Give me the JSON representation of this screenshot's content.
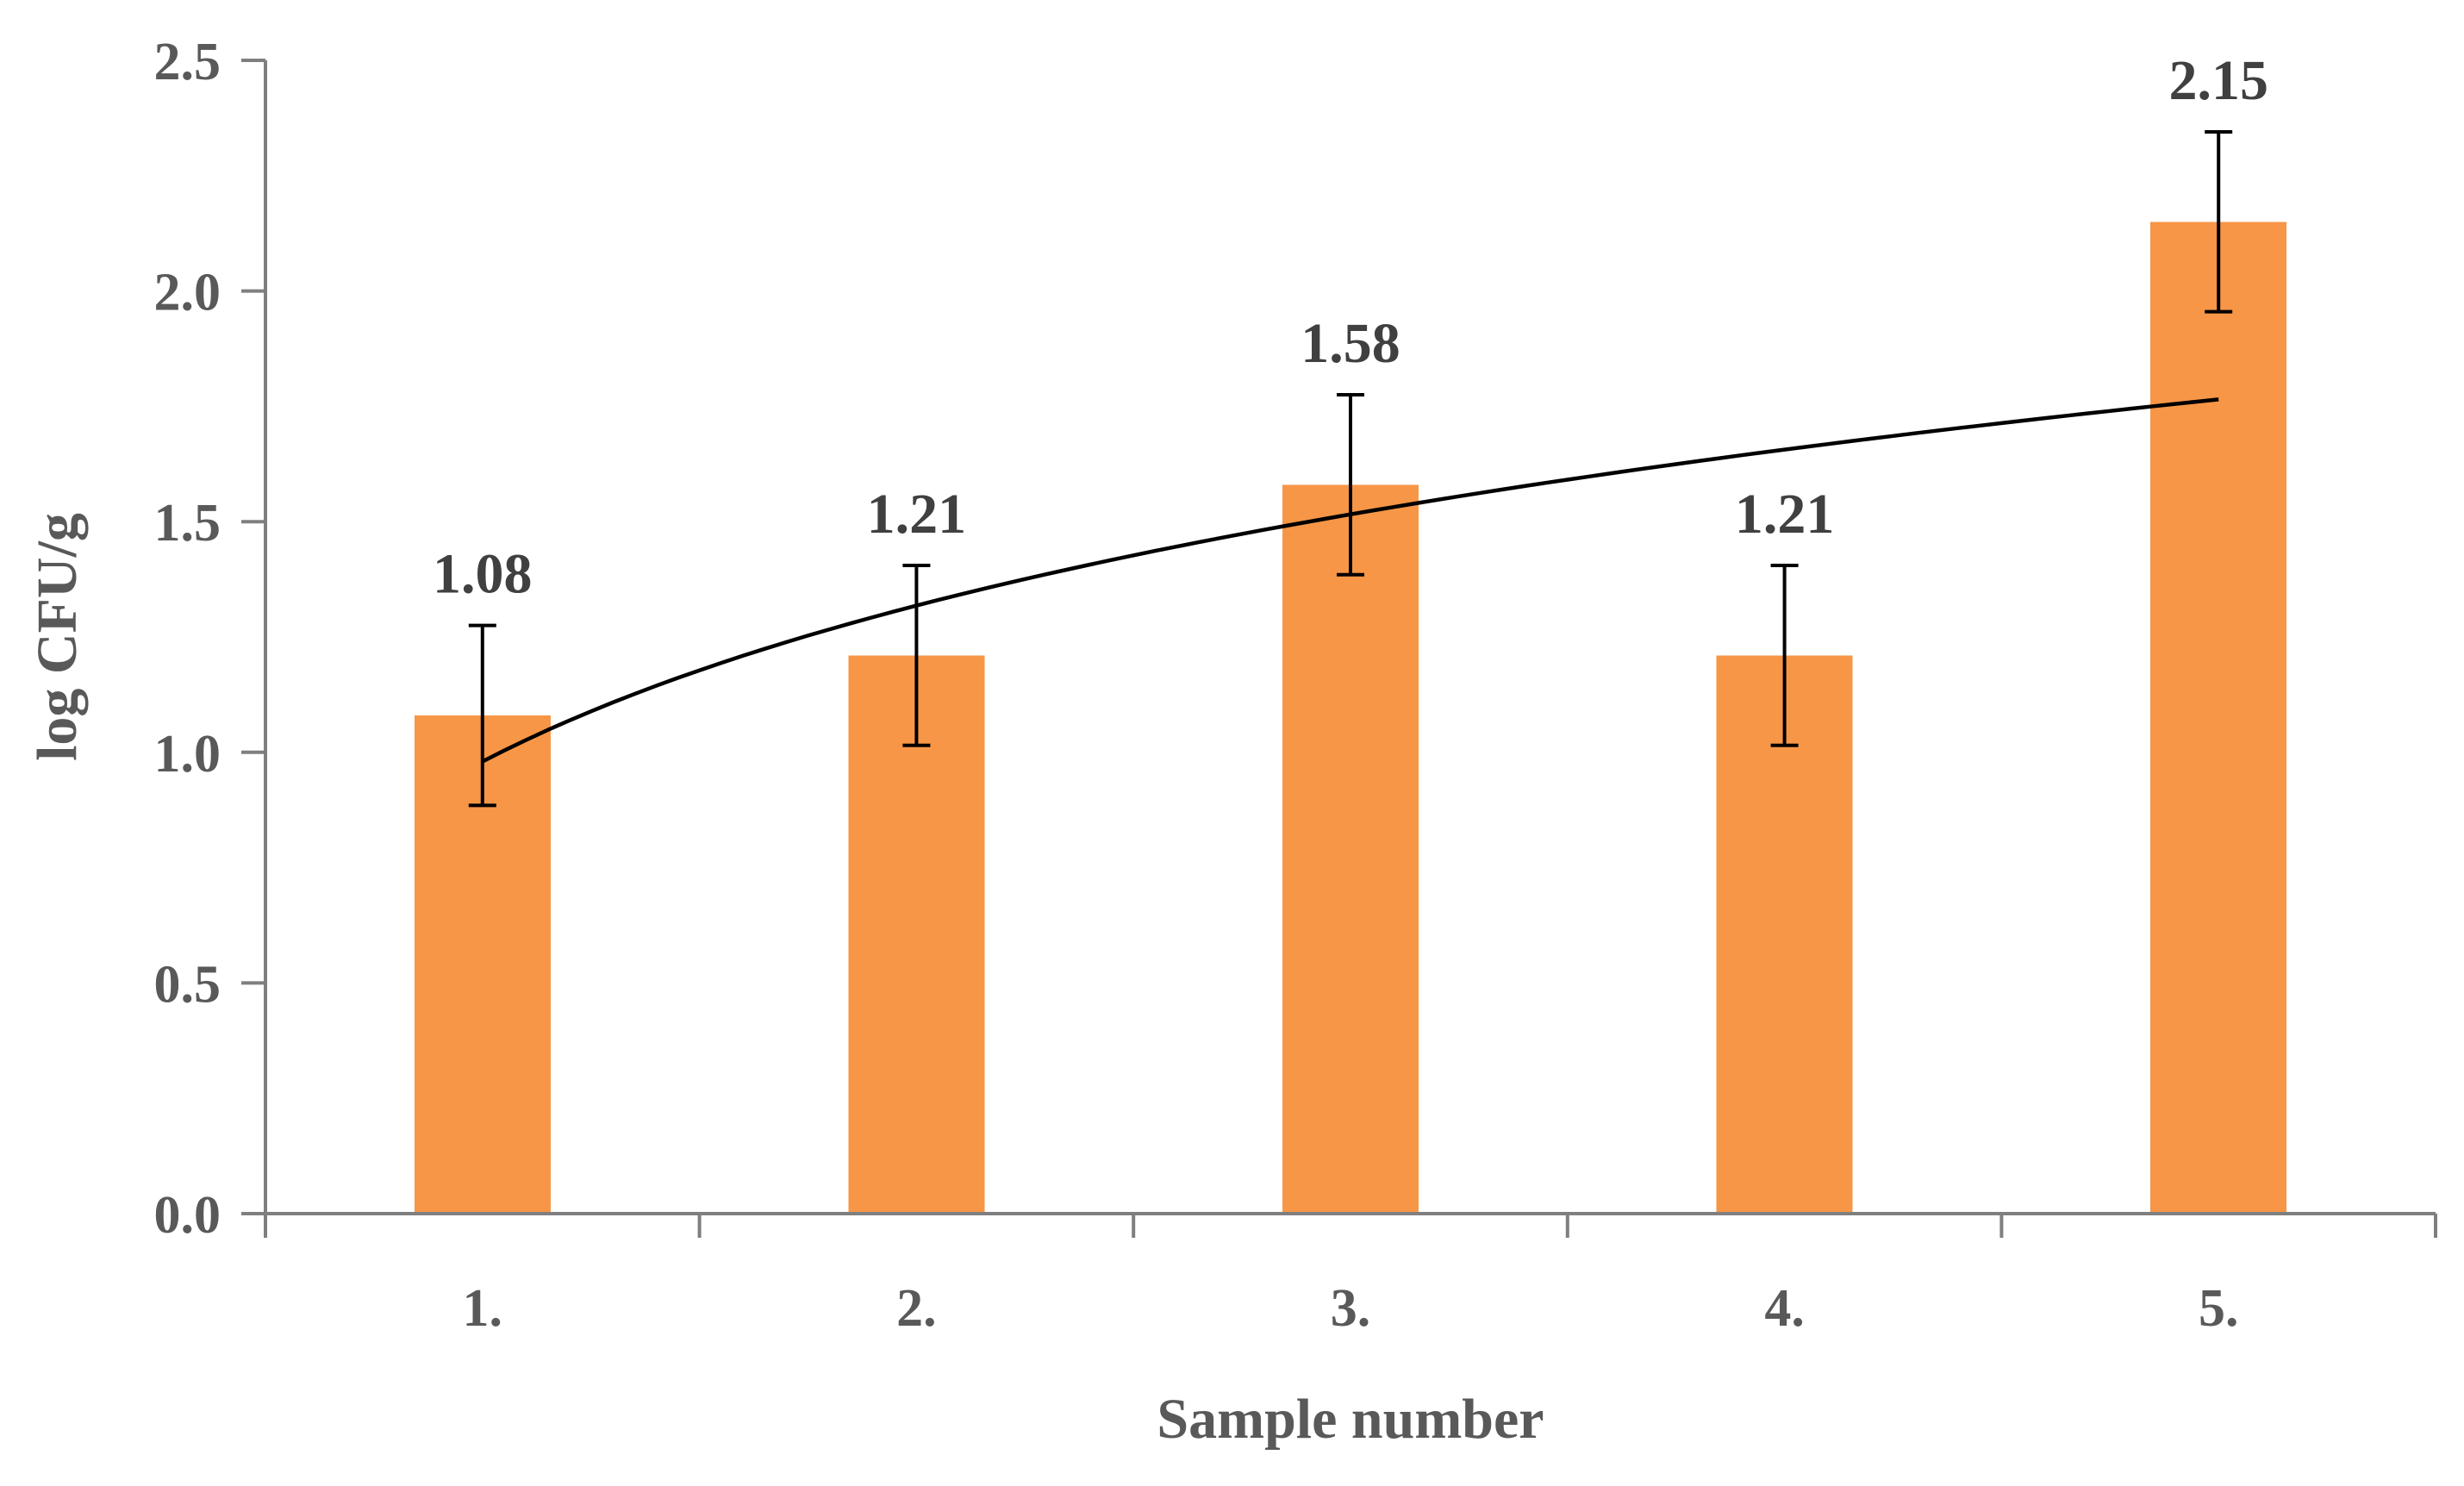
{
  "chart_data": {
    "type": "bar",
    "categories": [
      "1.",
      "2.",
      "3.",
      "4.",
      "5."
    ],
    "values": [
      1.08,
      1.21,
      1.58,
      1.21,
      2.15
    ],
    "data_labels": [
      "1.08",
      "1.21",
      "1.58",
      "1.21",
      "2.15"
    ],
    "error_bars": [
      0.195,
      0.195,
      0.195,
      0.195,
      0.195
    ],
    "trendline": {
      "type": "logarithmic",
      "values": [
        0.98,
        1.31,
        1.51,
        1.65,
        1.765
      ]
    },
    "xlabel": "Sample number",
    "ylabel": "log CFU/g",
    "ylim": [
      0,
      2.5
    ],
    "yticks": [
      "0.0",
      "0.5",
      "1.0",
      "1.5",
      "2.0",
      "2.5"
    ],
    "ytick_values": [
      0,
      0.5,
      1.0,
      1.5,
      2.0,
      2.5
    ],
    "grid": false,
    "legend": "none",
    "colors": {
      "bar": "#f79646",
      "trend": "#000000",
      "axis": "#7f7f7f",
      "text": "#595959",
      "label": "#404040"
    }
  }
}
